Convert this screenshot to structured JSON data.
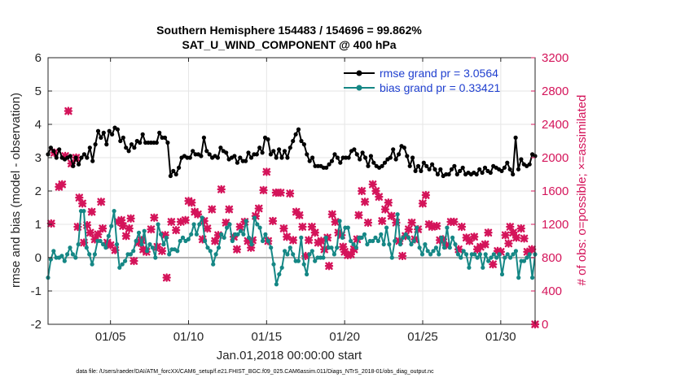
{
  "chart_data": {
    "type": "line",
    "title_line1": "Southern Hemisphere 154483 / 154696 = 99.862%",
    "title_line2": "SAT_U_WIND_COMPONENT @ 400 hPa",
    "xlabel": "Jan.01,2018 00:00:00 start",
    "ylabel": "rmse and bias (model - observation)",
    "ylabel_right": "# of obs: o=possible; ×=assimilated",
    "footer": "data file: /Users/raeder/DAI/ATM_forcXX/CAM6_setup/f.e21.FHIST_BGC.f09_025.CAM6assim.011/Diags_NTrS_2018-01/obs_diag_output.nc",
    "xlim": [
      1,
      32.2
    ],
    "ylim": [
      -2,
      6
    ],
    "ylim_right": [
      0,
      3200
    ],
    "x_ticks": [
      5,
      10,
      15,
      20,
      25,
      30
    ],
    "x_tick_labels": [
      "01/05",
      "01/10",
      "01/15",
      "01/20",
      "01/25",
      "01/30"
    ],
    "y_ticks": [
      -2,
      -1,
      0,
      1,
      2,
      3,
      4,
      5,
      6
    ],
    "y_tick_labels": [
      "-2",
      "-1",
      "0",
      "1",
      "2",
      "3",
      "4",
      "5",
      "6"
    ],
    "y_ticks_right": [
      0,
      400,
      800,
      1200,
      1600,
      2000,
      2400,
      2800,
      3200
    ],
    "y_tick_labels_right": [
      "0",
      "400",
      "800",
      "1200",
      "1600",
      "2000",
      "2400",
      "2800",
      "3200"
    ],
    "legend": [
      {
        "label": "rmse grand pr = 3.0564",
        "color": "#000000"
      },
      {
        "label": "bias grand pr = 0.33421",
        "color": "#158785"
      }
    ],
    "colors": {
      "rmse": "#000000",
      "bias": "#158785",
      "obs": "#d4145a",
      "zero_line": "#b3b3b3",
      "grid": "#e6e6e6"
    },
    "rmse": [
      3.1,
      3.3,
      3.2,
      3.0,
      3.25,
      3.0,
      2.95,
      3.0,
      3.05,
      2.75,
      3.0,
      2.8,
      3.0,
      3.1,
      3.0,
      3.3,
      2.9,
      3.4,
      3.8,
      3.6,
      3.75,
      3.4,
      3.8,
      3.7,
      3.9,
      3.85,
      3.5,
      3.6,
      3.3,
      3.2,
      3.4,
      3.3,
      3.5,
      3.45,
      3.7,
      3.45,
      3.45,
      3.45,
      3.45,
      3.45,
      3.75,
      3.6,
      3.6,
      3.45,
      2.45,
      2.6,
      2.5,
      2.7,
      3.0,
      3.05,
      3.0,
      3.0,
      3.2,
      3.1,
      3.1,
      3.05,
      3.6,
      3.2,
      3.1,
      3.0,
      3.05,
      3.0,
      3.3,
      3.2,
      3.15,
      2.95,
      3.0,
      3.05,
      2.85,
      3.0,
      2.9,
      2.9,
      3.15,
      3.0,
      3.1,
      3.1,
      3.3,
      3.15,
      3.6,
      3.55,
      3.1,
      3.2,
      3.0,
      3.25,
      3.0,
      3.2,
      3.0,
      3.3,
      3.5,
      3.7,
      3.85,
      3.5,
      3.4,
      3.1,
      2.9,
      3.0,
      2.75,
      2.75,
      2.75,
      2.7,
      2.7,
      2.8,
      2.9,
      3.1,
      3.0,
      2.85,
      3.0,
      3.0,
      3.0,
      3.2,
      3.25,
      3.1,
      2.95,
      3.15,
      3.0,
      2.75,
      3.05,
      2.85,
      2.75,
      2.7,
      2.75,
      2.85,
      2.95,
      3.0,
      3.25,
      2.95,
      3.1,
      3.35,
      3.3,
      3.05,
      2.75,
      3.0,
      2.6,
      2.75,
      2.6,
      2.85,
      2.75,
      2.65,
      2.8,
      2.65,
      2.5,
      2.65,
      2.45,
      2.5,
      2.5,
      2.65,
      2.75,
      2.5,
      2.6,
      2.7,
      2.5,
      2.55,
      2.5,
      2.55,
      2.5,
      2.65,
      2.55,
      2.7,
      2.6,
      2.55,
      2.75,
      2.7,
      2.65,
      2.6,
      2.7,
      2.85,
      2.65,
      2.5,
      3.6,
      2.65,
      2.95,
      2.8,
      2.75,
      2.8,
      3.1,
      3.05
    ],
    "bias": [
      -0.6,
      -0.05,
      0.2,
      0.0,
      0.0,
      0.05,
      -0.1,
      0.1,
      0.3,
      0.1,
      0.0,
      0.4,
      1.4,
      1.4,
      0.3,
      0.1,
      -0.2,
      0.1,
      0.5,
      0.5,
      0.4,
      0.3,
      0.65,
      0.95,
      1.4,
      0.4,
      -0.3,
      -0.2,
      -0.1,
      0.1,
      0.1,
      0.2,
      0.5,
      0.75,
      0.4,
      0.8,
      0.2,
      0.4,
      0.3,
      0.0,
      1.0,
      0.7,
      0.4,
      0.6,
      0.1,
      0.25,
      0.25,
      0.2,
      0.5,
      0.6,
      0.5,
      0.55,
      0.7,
      1.0,
      0.7,
      1.0,
      1.2,
      0.5,
      0.3,
      0.2,
      -0.2,
      0.1,
      0.3,
      0.7,
      0.6,
      0.9,
      1.0,
      0.5,
      0.7,
      0.7,
      0.8,
      0.7,
      1.1,
      0.6,
      0.4,
      1.2,
      1.0,
      0.9,
      0.5,
      0.7,
      0.5,
      0.3,
      -0.2,
      -0.8,
      -0.5,
      -0.3,
      0.2,
      0.1,
      0.3,
      0.1,
      -0.1,
      -0.1,
      0.6,
      -0.2,
      -0.5,
      0.1,
      0.2,
      -0.1,
      0.0,
      0.0,
      0.0,
      0.6,
      0.3,
      0.3,
      0.1,
      0.3,
      1.1,
      0.6,
      0.9,
      0.9,
      0.5,
      0.4,
      0.3,
      0.6,
      0.6,
      0.7,
      0.4,
      0.5,
      0.5,
      0.6,
      0.5,
      0.7,
      0.4,
      0.9,
      0.4,
      0.0,
      0.5,
      1.3,
      0.4,
      0.6,
      0.7,
      0.6,
      0.4,
      0.5,
      0.9,
      0.3,
      0.1,
      0.4,
      0.2,
      0.1,
      0.2,
      0.3,
      0.1,
      0.6,
      0.3,
      0.9,
      0.3,
      0.6,
      0.4,
      0.1,
      0.0,
      0.2,
      0.1,
      -0.3,
      0.1,
      0.1,
      0.0,
      0.1,
      -0.3,
      0.1,
      -0.1,
      0.0,
      0.1,
      0.0,
      0.1,
      -0.5,
      0.0,
      0.1,
      0.0,
      0.1,
      0.2,
      -0.6,
      -0.1,
      -0.1,
      0.0,
      0.1,
      -0.6,
      0.1
    ],
    "obs_assimilated": [
      [
        1.2,
        1210
      ],
      [
        1.4,
        2060
      ],
      [
        1.7,
        1650
      ],
      [
        1.9,
        1680
      ],
      [
        2.1,
        2020
      ],
      [
        2.3,
        2560
      ],
      [
        2.5,
        1930
      ],
      [
        2.8,
        2000
      ],
      [
        2.9,
        1170
      ],
      [
        3.0,
        1520
      ],
      [
        3.2,
        1450
      ],
      [
        3.3,
        980
      ],
      [
        3.5,
        1190
      ],
      [
        3.7,
        1100
      ],
      [
        3.8,
        1350
      ],
      [
        4.0,
        1020
      ],
      [
        4.2,
        1080
      ],
      [
        4.4,
        1470
      ],
      [
        4.5,
        1150
      ],
      [
        4.8,
        980
      ],
      [
        5.0,
        950
      ],
      [
        5.3,
        890
      ],
      [
        5.5,
        1230
      ],
      [
        5.7,
        1250
      ],
      [
        5.8,
        1180
      ],
      [
        6.0,
        1060
      ],
      [
        6.2,
        1150
      ],
      [
        6.3,
        1270
      ],
      [
        6.5,
        760
      ],
      [
        6.8,
        980
      ],
      [
        7.0,
        1010
      ],
      [
        7.1,
        900
      ],
      [
        7.3,
        870
      ],
      [
        7.6,
        1140
      ],
      [
        7.8,
        1280
      ],
      [
        8.0,
        930
      ],
      [
        8.3,
        880
      ],
      [
        8.5,
        1070
      ],
      [
        8.6,
        560
      ],
      [
        8.9,
        1230
      ],
      [
        9.2,
        1130
      ],
      [
        9.5,
        1230
      ],
      [
        9.8,
        1250
      ],
      [
        10.0,
        1480
      ],
      [
        10.2,
        1460
      ],
      [
        10.4,
        1350
      ],
      [
        10.6,
        1320
      ],
      [
        10.9,
        1020
      ],
      [
        11.0,
        1240
      ],
      [
        11.2,
        1150
      ],
      [
        11.5,
        1380
      ],
      [
        11.7,
        1000
      ],
      [
        11.9,
        1070
      ],
      [
        12.1,
        1620
      ],
      [
        12.4,
        1220
      ],
      [
        12.6,
        1380
      ],
      [
        12.9,
        1050
      ],
      [
        13.1,
        900
      ],
      [
        13.3,
        1170
      ],
      [
        13.6,
        1230
      ],
      [
        13.8,
        1000
      ],
      [
        14.0,
        920
      ],
      [
        14.1,
        1010
      ],
      [
        14.3,
        1300
      ],
      [
        14.5,
        1390
      ],
      [
        14.8,
        1610
      ],
      [
        15.0,
        1830
      ],
      [
        15.1,
        1000
      ],
      [
        15.4,
        1240
      ],
      [
        15.6,
        1580
      ],
      [
        15.9,
        1580
      ],
      [
        16.1,
        1150
      ],
      [
        16.3,
        1050
      ],
      [
        16.5,
        1570
      ],
      [
        16.7,
        1010
      ],
      [
        16.9,
        1350
      ],
      [
        17.1,
        1310
      ],
      [
        17.3,
        1170
      ],
      [
        17.5,
        820
      ],
      [
        17.7,
        1010
      ],
      [
        17.9,
        1170
      ],
      [
        18.1,
        1100
      ],
      [
        18.3,
        980
      ],
      [
        18.5,
        1000
      ],
      [
        18.7,
        900
      ],
      [
        18.9,
        1040
      ],
      [
        19.0,
        700
      ],
      [
        19.2,
        1320
      ],
      [
        19.4,
        1230
      ],
      [
        19.6,
        1100
      ],
      [
        19.8,
        1070
      ],
      [
        19.9,
        930
      ],
      [
        20.0,
        870
      ],
      [
        20.2,
        830
      ],
      [
        20.4,
        840
      ],
      [
        20.6,
        900
      ],
      [
        20.8,
        1020
      ],
      [
        20.9,
        1310
      ],
      [
        21.1,
        1600
      ],
      [
        21.3,
        1470
      ],
      [
        21.5,
        1220
      ],
      [
        21.8,
        1680
      ],
      [
        22.0,
        1600
      ],
      [
        22.2,
        1530
      ],
      [
        22.4,
        1240
      ],
      [
        22.6,
        1380
      ],
      [
        22.8,
        1460
      ],
      [
        23.0,
        1300
      ],
      [
        23.3,
        1220
      ],
      [
        23.5,
        1000
      ],
      [
        23.7,
        820
      ],
      [
        23.9,
        1060
      ],
      [
        24.1,
        1140
      ],
      [
        24.3,
        1220
      ],
      [
        24.5,
        1020
      ],
      [
        24.7,
        1140
      ],
      [
        25.0,
        1450
      ],
      [
        25.2,
        1550
      ],
      [
        25.4,
        1200
      ],
      [
        25.6,
        1170
      ],
      [
        25.9,
        1180
      ],
      [
        26.1,
        1010
      ],
      [
        26.3,
        1020
      ],
      [
        26.5,
        950
      ],
      [
        26.8,
        1230
      ],
      [
        27.0,
        1230
      ],
      [
        27.3,
        900
      ],
      [
        27.5,
        1170
      ],
      [
        27.8,
        1040
      ],
      [
        28.0,
        1000
      ],
      [
        28.3,
        1050
      ],
      [
        28.5,
        900
      ],
      [
        28.7,
        930
      ],
      [
        29.0,
        960
      ],
      [
        29.2,
        1100
      ],
      [
        29.5,
        720
      ],
      [
        29.8,
        880
      ],
      [
        30.0,
        870
      ],
      [
        30.3,
        1070
      ],
      [
        30.5,
        970
      ],
      [
        30.6,
        1170
      ],
      [
        30.8,
        1100
      ],
      [
        31.0,
        1040
      ],
      [
        31.3,
        1150
      ],
      [
        31.5,
        1030
      ],
      [
        31.7,
        870
      ],
      [
        32.0,
        900
      ],
      [
        32.2,
        0
      ]
    ]
  }
}
